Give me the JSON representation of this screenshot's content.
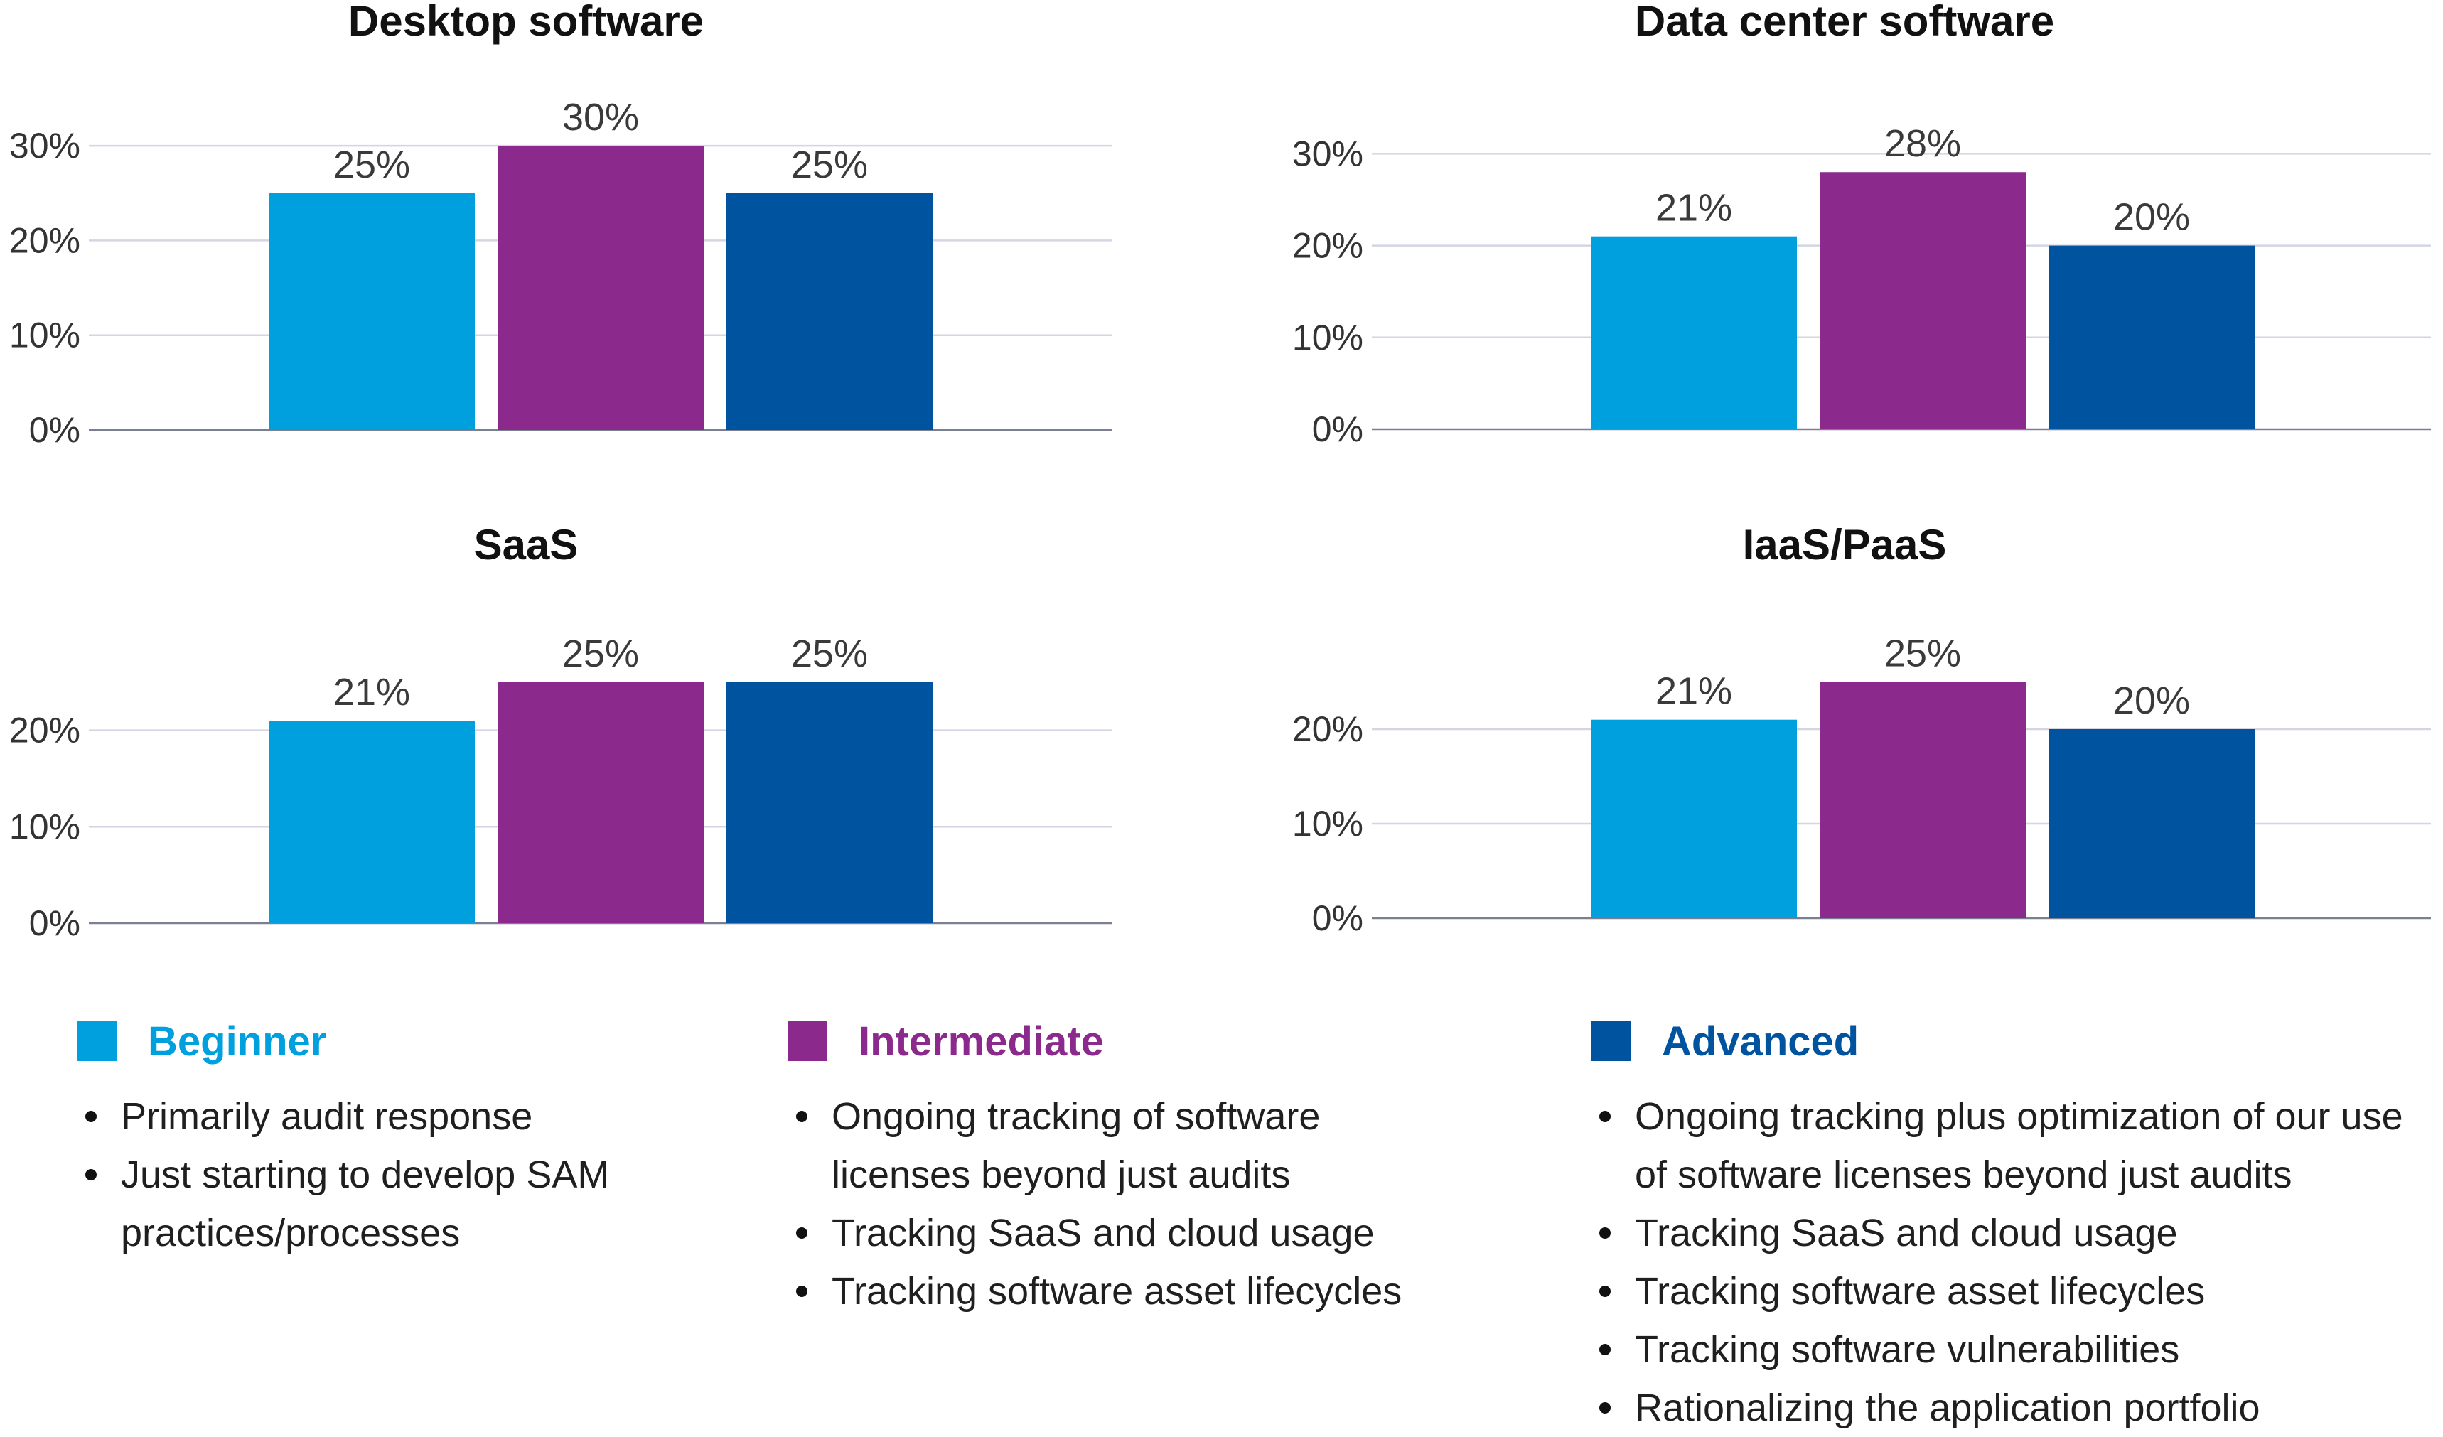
{
  "colors": {
    "beginner": "#00a0df",
    "intermediate": "#8b2a8c",
    "advanced": "#00539f"
  },
  "chart_data": [
    {
      "type": "bar",
      "title": "Desktop software",
      "categories": [
        "Beginner",
        "Intermediate",
        "Advanced"
      ],
      "values": [
        25,
        30,
        25
      ],
      "value_labels": [
        "25%",
        "30%",
        "25%"
      ],
      "yticks": [
        "0%",
        "10%",
        "20%",
        "30%"
      ],
      "ylim": [
        0,
        30
      ],
      "grid": true
    },
    {
      "type": "bar",
      "title": "Data center software",
      "categories": [
        "Beginner",
        "Intermediate",
        "Advanced"
      ],
      "values": [
        21,
        28,
        20
      ],
      "value_labels": [
        "21%",
        "28%",
        "20%"
      ],
      "yticks": [
        "0%",
        "10%",
        "20%",
        "30%"
      ],
      "ylim": [
        0,
        30
      ],
      "grid": true
    },
    {
      "type": "bar",
      "title": "SaaS",
      "categories": [
        "Beginner",
        "Intermediate",
        "Advanced"
      ],
      "values": [
        21,
        25,
        25
      ],
      "value_labels": [
        "21%",
        "25%",
        "25%"
      ],
      "yticks": [
        "0%",
        "10%",
        "20%"
      ],
      "ylim": [
        0,
        20
      ],
      "grid": true
    },
    {
      "type": "bar",
      "title": "IaaS/PaaS",
      "categories": [
        "Beginner",
        "Intermediate",
        "Advanced"
      ],
      "values": [
        21,
        25,
        20
      ],
      "value_labels": [
        "21%",
        "25%",
        "20%"
      ],
      "yticks": [
        "0%",
        "10%",
        "20%"
      ],
      "ylim": [
        0,
        20
      ],
      "grid": true
    }
  ],
  "legend": [
    {
      "name": "Beginner",
      "color": "#00a0df",
      "bullets": [
        "Primarily audit response",
        "Just starting to develop SAM practices/processes"
      ]
    },
    {
      "name": "Intermediate",
      "color": "#8b2a8c",
      "bullets": [
        "Ongoing tracking of software licenses beyond just audits",
        "Tracking SaaS and cloud usage",
        "Tracking software asset lifecycles"
      ]
    },
    {
      "name": "Advanced",
      "color": "#00539f",
      "bullets": [
        "Ongoing tracking plus optimization of our use of software licenses beyond just audits",
        "Tracking SaaS and cloud usage",
        "Tracking software asset lifecycles",
        "Tracking software vulnerabilities",
        "Rationalizing the application portfolio"
      ]
    }
  ]
}
